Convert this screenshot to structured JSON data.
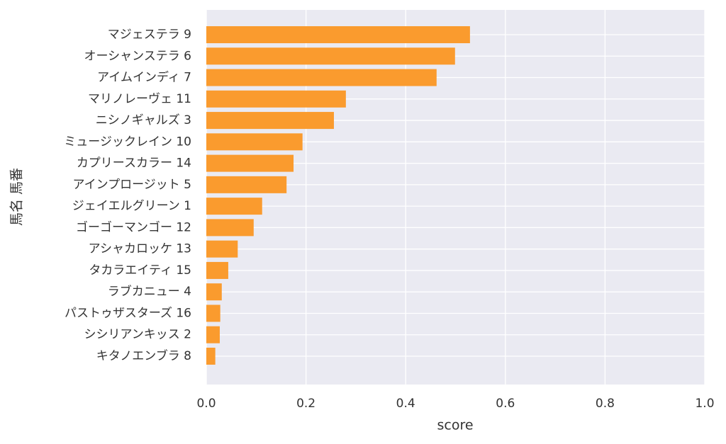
{
  "chart_data": {
    "type": "barh",
    "xlabel": "score",
    "ylabel": "馬名 馬番",
    "categories": [
      "マジェステラ 9",
      "オーシャンステラ 6",
      "アイムインディ 7",
      "マリノレーヴェ 11",
      "ニシノギャルズ 3",
      "ミュージックレイン 10",
      "カプリースカラー 14",
      "アインプロージット 5",
      "ジェイエルグリーン 1",
      "ゴーゴーマンゴー 12",
      "アシャカロッケ 13",
      "タカラエイティ 15",
      "ラブカニュー 4",
      "パストゥザスターズ 16",
      "シシリアンキッス 2",
      "キタノエンブラ 8"
    ],
    "values": [
      0.529,
      0.499,
      0.462,
      0.28,
      0.256,
      0.193,
      0.175,
      0.161,
      0.112,
      0.095,
      0.063,
      0.044,
      0.031,
      0.028,
      0.027,
      0.018
    ],
    "color": "#fa9b2e",
    "xlim": [
      0,
      1
    ],
    "xticks": [
      {
        "value": 0,
        "label": "0.0"
      },
      0.2,
      0.4,
      0.6,
      0.8,
      {
        "value": 1,
        "label": "1.0"
      }
    ],
    "grid": true
  }
}
